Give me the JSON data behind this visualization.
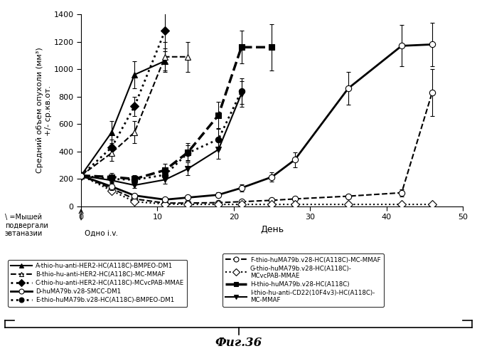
{
  "ylabel": "Средний объем опухоли (мм³)\n+/- ср.кв.от.",
  "xlabel": "День",
  "xlim": [
    0,
    50
  ],
  "ylim": [
    0,
    1400
  ],
  "yticks": [
    0,
    200,
    400,
    600,
    800,
    1000,
    1200,
    1400
  ],
  "xticks": [
    0,
    10,
    20,
    30,
    40,
    50
  ],
  "fig_caption": "Фиг.36",
  "annotation_mouse": "\\ =Мышей\nподвергали\nэвтаназии",
  "annotation_iv": "Одно i.v.",
  "series": [
    {
      "label": "A-thio-hu-anti-HER2-HC(A118C)-BMPEO-DM1",
      "x": [
        0,
        4,
        7,
        11
      ],
      "y": [
        225,
        540,
        960,
        1060
      ],
      "yerr": [
        15,
        80,
        100,
        70
      ],
      "linestyle": "-",
      "marker": "^",
      "markersize": 6,
      "fillstyle": "full",
      "linewidth": 1.5,
      "zorder": 5
    },
    {
      "label": "B-thio-hu-anti-HER2-HC(A118C)-MC-MMAF",
      "x": [
        0,
        4,
        7,
        11,
        14
      ],
      "y": [
        225,
        390,
        540,
        1090,
        1090
      ],
      "yerr": [
        15,
        60,
        80,
        110,
        110
      ],
      "linestyle": "--",
      "marker": "^",
      "markersize": 6,
      "fillstyle": "none",
      "linewidth": 1.5,
      "zorder": 5
    },
    {
      "label": "C-thio-hu-anti-HER2-HC(A118C)-MCvcPAB-MMAE",
      "x": [
        0,
        4,
        7,
        11
      ],
      "y": [
        225,
        430,
        730,
        1280
      ],
      "yerr": [
        15,
        55,
        70,
        130
      ],
      "linestyle": ":",
      "marker": "D",
      "markersize": 6,
      "fillstyle": "full",
      "linewidth": 2.0,
      "zorder": 5
    },
    {
      "label": "D-huMA79b.v28-SMCC-DM1",
      "x": [
        0,
        4,
        7,
        11,
        14,
        18,
        21,
        25,
        28,
        35,
        42,
        46
      ],
      "y": [
        225,
        145,
        80,
        50,
        65,
        85,
        135,
        215,
        340,
        860,
        1170,
        1180
      ],
      "yerr": [
        15,
        25,
        15,
        12,
        15,
        20,
        25,
        35,
        55,
        120,
        150,
        160
      ],
      "linestyle": "-",
      "marker": "o",
      "markersize": 6,
      "fillstyle": "none",
      "linewidth": 2.0,
      "zorder": 6
    },
    {
      "label": "E-thio-huMA79b.v28-HC(A118C)-BMPEO-DM1",
      "x": [
        0,
        4,
        7,
        11,
        14,
        18,
        21
      ],
      "y": [
        225,
        200,
        195,
        230,
        390,
        490,
        840
      ],
      "yerr": [
        15,
        25,
        25,
        35,
        55,
        75,
        95
      ],
      "linestyle": ":",
      "marker": "o",
      "markersize": 6,
      "fillstyle": "full",
      "linewidth": 2.0,
      "zorder": 5
    },
    {
      "label": "F-thio-huMA79b.v28-HC(A118C)-MC-MMAF",
      "x": [
        0,
        4,
        7,
        11,
        14,
        18,
        21,
        25,
        28,
        35,
        42,
        46
      ],
      "y": [
        225,
        130,
        55,
        25,
        25,
        28,
        35,
        45,
        55,
        75,
        100,
        830
      ],
      "yerr": [
        15,
        22,
        12,
        8,
        8,
        8,
        8,
        10,
        12,
        15,
        25,
        170
      ],
      "linestyle": "--",
      "marker": "o",
      "markersize": 6,
      "fillstyle": "none",
      "linewidth": 1.5,
      "zorder": 4
    },
    {
      "label": "G-thio-huMA79b.v28-HC(A118C)-\nMCvcPAB-MMAE",
      "x": [
        0,
        4,
        7,
        11,
        14,
        18,
        21,
        25,
        28,
        35,
        42,
        46
      ],
      "y": [
        225,
        115,
        35,
        18,
        15,
        15,
        15,
        15,
        15,
        15,
        15,
        15
      ],
      "yerr": [
        15,
        18,
        8,
        4,
        4,
        4,
        4,
        4,
        4,
        4,
        4,
        4
      ],
      "linestyle": ":",
      "marker": "D",
      "markersize": 6,
      "fillstyle": "none",
      "linewidth": 1.5,
      "zorder": 4
    },
    {
      "label": "H-thio-huMA79b.v28-HC(A118C)",
      "x": [
        0,
        4,
        7,
        11,
        14,
        18,
        21,
        25
      ],
      "y": [
        225,
        215,
        200,
        265,
        395,
        665,
        1160,
        1160
      ],
      "yerr": [
        15,
        28,
        28,
        45,
        65,
        95,
        120,
        170
      ],
      "linestyle": "--",
      "marker": "s",
      "markersize": 6,
      "fillstyle": "full",
      "linewidth": 2.5,
      "zorder": 5
    },
    {
      "label": "I-thio-hu-anti-CD22(10F4v3)-HC(A118C)-\nMC-MMAF",
      "x": [
        0,
        4,
        7,
        11,
        14,
        18,
        21
      ],
      "y": [
        225,
        190,
        155,
        195,
        275,
        415,
        820
      ],
      "yerr": [
        15,
        28,
        22,
        28,
        45,
        65,
        95
      ],
      "linestyle": "-",
      "marker": "v",
      "markersize": 6,
      "fillstyle": "full",
      "linewidth": 1.5,
      "zorder": 5
    }
  ]
}
